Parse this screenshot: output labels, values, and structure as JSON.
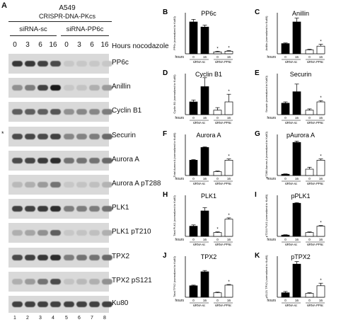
{
  "figure": {
    "panel_a_letter": "A",
    "cell_line": "A549",
    "construct": "CRISPR-DNA-PKcs",
    "group_left": "siRNA-sc",
    "group_right": "siRNA-PP6c",
    "hours": [
      "0",
      "3",
      "6",
      "16",
      "0",
      "3",
      "6",
      "16"
    ],
    "hours_label": "Hours nocodazole",
    "lane_numbers": [
      "1",
      "2",
      "3",
      "4",
      "5",
      "6",
      "7",
      "8"
    ],
    "asterisk": "*",
    "blots": [
      {
        "label": "PP6c",
        "levels": [
          0.8,
          0.8,
          0.75,
          0.7,
          0.08,
          0.08,
          0.08,
          0.08
        ]
      },
      {
        "label": "Anillin",
        "levels": [
          0.35,
          0.45,
          0.75,
          0.95,
          0.08,
          0.1,
          0.2,
          0.3
        ]
      },
      {
        "label": "Cyclin B1",
        "levels": [
          0.6,
          0.6,
          0.6,
          0.65,
          0.35,
          0.4,
          0.4,
          0.45
        ]
      },
      {
        "label": "Securin",
        "levels": [
          0.7,
          0.72,
          0.7,
          0.75,
          0.4,
          0.42,
          0.45,
          0.55
        ]
      },
      {
        "label": "Aurora A",
        "levels": [
          0.7,
          0.72,
          0.78,
          0.85,
          0.5,
          0.5,
          0.5,
          0.55
        ]
      },
      {
        "label": "Aurora A pT288",
        "levels": [
          0.15,
          0.2,
          0.3,
          0.5,
          0.08,
          0.1,
          0.12,
          0.18
        ]
      },
      {
        "label": "PLK1",
        "levels": [
          0.75,
          0.75,
          0.78,
          0.85,
          0.45,
          0.45,
          0.45,
          0.5
        ]
      },
      {
        "label": "PLK1 pT210",
        "levels": [
          0.2,
          0.25,
          0.35,
          0.6,
          0.08,
          0.1,
          0.12,
          0.2
        ]
      },
      {
        "label": "TPX2",
        "levels": [
          0.7,
          0.75,
          0.8,
          0.85,
          0.45,
          0.5,
          0.5,
          0.55
        ]
      },
      {
        "label": "TPX2 pS121",
        "levels": [
          0.2,
          0.3,
          0.5,
          0.7,
          0.1,
          0.15,
          0.2,
          0.35
        ]
      },
      {
        "label": "Ku80",
        "levels": [
          0.75,
          0.75,
          0.75,
          0.75,
          0.75,
          0.75,
          0.75,
          0.75
        ]
      }
    ],
    "bar_common": {
      "x_hours_label": "hours",
      "x_ticks": [
        "0",
        "16",
        "0",
        "16"
      ],
      "group_left": "siRNA-sc",
      "group_right": "siRNA-PP6c",
      "significance": "*"
    }
  },
  "chart_data": [
    {
      "type": "bar",
      "letter": "B",
      "title": "PP6c",
      "ylabel": "PP6c (normalized to Ku80)",
      "ylim": [
        0,
        3
      ],
      "values": [
        2.5,
        2.1,
        0.15,
        0.2
      ],
      "errors": [
        0.2,
        0.15,
        0.05,
        0.05
      ],
      "fills": [
        "#000000",
        "#000000",
        "#ffffff",
        "#ffffff"
      ],
      "sig": [
        0,
        0,
        1,
        1
      ]
    },
    {
      "type": "bar",
      "letter": "C",
      "title": "Anillin",
      "ylabel": "Anillin (normalized to Ku80)",
      "ylim": [
        0,
        3
      ],
      "values": [
        0.8,
        2.5,
        0.3,
        0.6
      ],
      "errors": [
        0.05,
        0.3,
        0.05,
        0.15
      ],
      "fills": [
        "#000000",
        "#000000",
        "#ffffff",
        "#ffffff"
      ],
      "sig": [
        0,
        0,
        0,
        1
      ]
    },
    {
      "type": "bar",
      "letter": "D",
      "title": "Cyclin B1",
      "ylabel": "Cyclin B1 (normalized to Ku80)",
      "ylim": [
        0,
        3
      ],
      "values": [
        1.0,
        2.2,
        0.35,
        1.0
      ],
      "errors": [
        0.15,
        0.7,
        0.2,
        0.6
      ],
      "fills": [
        "#000000",
        "#000000",
        "#ffffff",
        "#ffffff"
      ],
      "sig": [
        0,
        0,
        0,
        1
      ]
    },
    {
      "type": "bar",
      "letter": "E",
      "title": "Securin",
      "ylabel": "Securin (normalized to Ku80)",
      "ylim": [
        0,
        3
      ],
      "values": [
        0.9,
        1.8,
        0.35,
        1.0
      ],
      "errors": [
        0.1,
        0.6,
        0.1,
        0.1
      ],
      "fills": [
        "#000000",
        "#000000",
        "#ffffff",
        "#ffffff"
      ],
      "sig": [
        0,
        0,
        0,
        1
      ]
    },
    {
      "type": "bar",
      "letter": "F",
      "title": "Aurora A",
      "ylabel": "Total Aurora A (normalized to Ku80)",
      "ylim": [
        0,
        3
      ],
      "values": [
        1.2,
        2.2,
        0.3,
        1.2
      ],
      "errors": [
        0.05,
        0.05,
        0.05,
        0.1
      ],
      "fills": [
        "#000000",
        "#000000",
        "#ffffff",
        "#ffffff"
      ],
      "sig": [
        0,
        0,
        0,
        1
      ]
    },
    {
      "type": "bar",
      "letter": "G",
      "title": "pAurora A",
      "ylabel": "pT288 Aurora A (normalized to Ku80)",
      "ylim": [
        0,
        3
      ],
      "values": [
        0.1,
        2.6,
        0.5,
        1.2
      ],
      "errors": [
        0.03,
        0.1,
        0.15,
        0.1
      ],
      "fills": [
        "#000000",
        "#000000",
        "#ffffff",
        "#ffffff"
      ],
      "sig": [
        0,
        0,
        0,
        1
      ]
    },
    {
      "type": "bar",
      "letter": "H",
      "title": "PLK1",
      "ylabel": "Total PLK1 (normalized to Ku80)",
      "ylim": [
        0,
        3
      ],
      "values": [
        0.8,
        2.0,
        0.3,
        1.35
      ],
      "errors": [
        0.1,
        0.25,
        0.05,
        0.1
      ],
      "fills": [
        "#000000",
        "#000000",
        "#ffffff",
        "#ffffff"
      ],
      "sig": [
        0,
        0,
        1,
        1
      ]
    },
    {
      "type": "bar",
      "letter": "I",
      "title": "pPLK1",
      "ylabel": "pT210 PLK1 (normalized to Ku80)",
      "ylim": [
        0,
        3
      ],
      "values": [
        0.1,
        2.6,
        0.3,
        0.8
      ],
      "errors": [
        0.03,
        0.05,
        0.05,
        0.05
      ],
      "fills": [
        "#000000",
        "#000000",
        "#ffffff",
        "#ffffff"
      ],
      "sig": [
        0,
        0,
        0,
        1
      ]
    },
    {
      "type": "bar",
      "letter": "J",
      "title": "TPX2",
      "ylabel": "Total TPX2 (normalized to Ku80)",
      "ylim": [
        0,
        3
      ],
      "values": [
        0.9,
        2.0,
        0.35,
        0.95
      ],
      "errors": [
        0.05,
        0.1,
        0.05,
        0.05
      ],
      "fills": [
        "#000000",
        "#000000",
        "#ffffff",
        "#ffffff"
      ],
      "sig": [
        0,
        0,
        0,
        1
      ]
    },
    {
      "type": "bar",
      "letter": "K",
      "title": "pTPX2",
      "ylabel": "pS121 TPX2 (normalized to Ku80)",
      "ylim": [
        0,
        3
      ],
      "values": [
        0.35,
        2.6,
        0.3,
        0.9
      ],
      "errors": [
        0.1,
        0.2,
        0.05,
        0.2
      ],
      "fills": [
        "#000000",
        "#000000",
        "#ffffff",
        "#ffffff"
      ],
      "sig": [
        0,
        0,
        0,
        1
      ]
    }
  ]
}
